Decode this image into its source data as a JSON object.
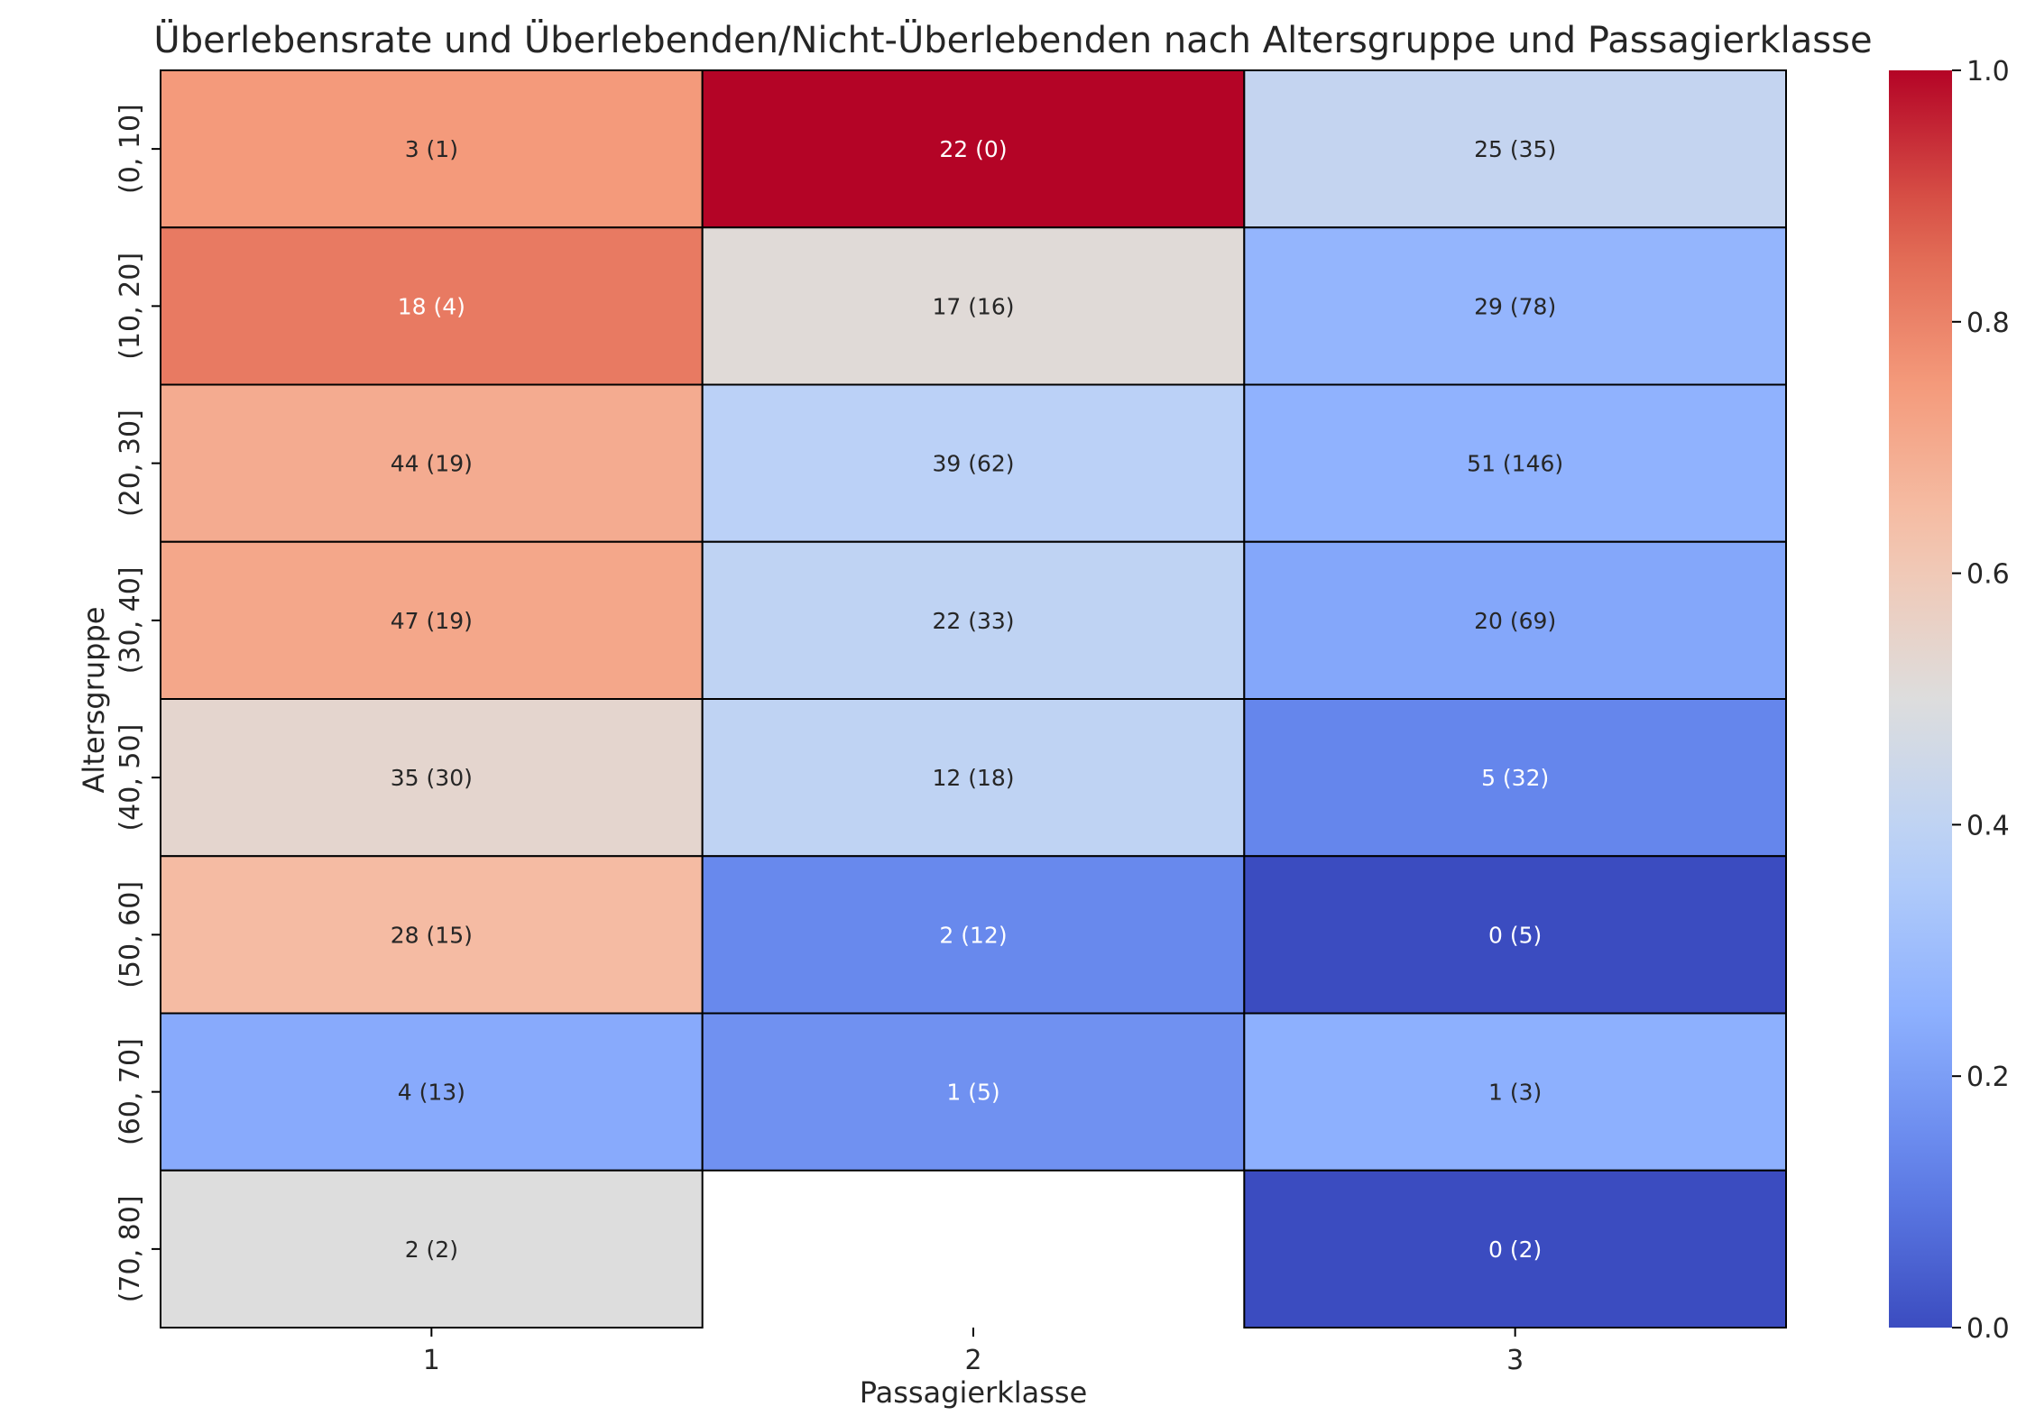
{
  "chart_data": {
    "type": "heatmap",
    "title": "Überlebensrate und Überlebenden/Nicht-Überlebenden nach Altersgruppe und Passagierklasse",
    "xlabel": "Passagierklasse",
    "ylabel": "Altersgruppe",
    "x_categories": [
      "1",
      "2",
      "3"
    ],
    "y_categories": [
      "(0, 10]",
      "(10, 20]",
      "(20, 30]",
      "(30, 40]",
      "(40, 50]",
      "(50, 60]",
      "(60, 70]",
      "(70, 80]"
    ],
    "cells": [
      [
        {
          "value": 0.75,
          "label": "3 (1)"
        },
        {
          "value": 1.0,
          "label": "22 (0)"
        },
        {
          "value": 0.417,
          "label": "25 (35)"
        }
      ],
      [
        {
          "value": 0.818,
          "label": "18 (4)"
        },
        {
          "value": 0.515,
          "label": "17 (16)"
        },
        {
          "value": 0.271,
          "label": "29 (78)"
        }
      ],
      [
        {
          "value": 0.698,
          "label": "44 (19)"
        },
        {
          "value": 0.386,
          "label": "39 (62)"
        },
        {
          "value": 0.259,
          "label": "51 (146)"
        }
      ],
      [
        {
          "value": 0.712,
          "label": "47 (19)"
        },
        {
          "value": 0.4,
          "label": "22 (33)"
        },
        {
          "value": 0.225,
          "label": "20 (69)"
        }
      ],
      [
        {
          "value": 0.538,
          "label": "35 (30)"
        },
        {
          "value": 0.4,
          "label": "12 (18)"
        },
        {
          "value": 0.135,
          "label": "5 (32)"
        }
      ],
      [
        {
          "value": 0.651,
          "label": "28 (15)"
        },
        {
          "value": 0.143,
          "label": "2 (12)"
        },
        {
          "value": 0.0,
          "label": "0 (5)"
        }
      ],
      [
        {
          "value": 0.235,
          "label": "4 (13)"
        },
        {
          "value": 0.167,
          "label": "1 (5)"
        },
        {
          "value": 0.25,
          "label": "1 (3)"
        }
      ],
      [
        {
          "value": 0.5,
          "label": "2 (2)"
        },
        {
          "value": null,
          "label": ""
        },
        {
          "value": 0.0,
          "label": "0 (2)"
        }
      ]
    ],
    "colorbar": {
      "min": 0.0,
      "max": 1.0,
      "ticks": [
        "0.0",
        "0.2",
        "0.4",
        "0.6",
        "0.8",
        "1.0"
      ],
      "colormap": "coolwarm",
      "low_color": "#3b4cc0",
      "mid_color": "#dddddd",
      "high_color": "#b40426"
    }
  }
}
